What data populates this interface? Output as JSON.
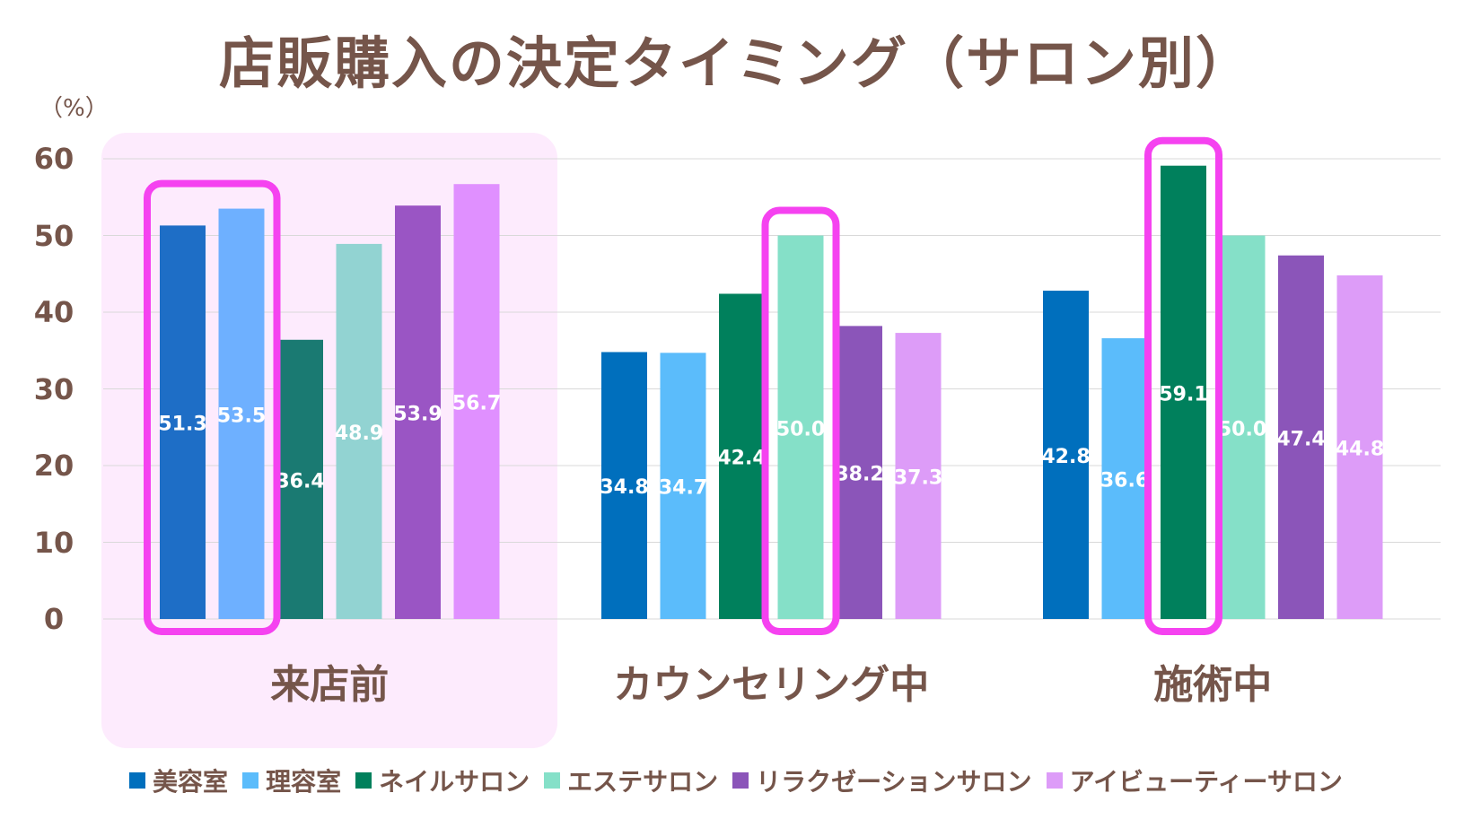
{
  "chart_data": {
    "type": "bar",
    "title": "店販購入の決定タイミング（サロン別）",
    "unit_label": "（%）",
    "ylim": [
      0,
      60
    ],
    "yticks": [
      "0",
      "10",
      "20",
      "30",
      "40",
      "50",
      "60"
    ],
    "grid": true,
    "legend_position": "bottom",
    "categories": [
      "来店前",
      "カウンセリング中",
      "施術中"
    ],
    "highlight_category": "来店前",
    "series": [
      {
        "name": "美容室",
        "values": [
          51.3,
          34.8,
          42.8
        ],
        "colors": [
          "#1e6ec6",
          "#006fbd",
          "#006fbd"
        ],
        "label_color": "#ffffff"
      },
      {
        "name": "理容室",
        "values": [
          53.5,
          34.7,
          36.6
        ],
        "colors": [
          "#6eb0ff",
          "#5bbcfb",
          "#5bbcfb"
        ],
        "label_color": "#ffffff"
      },
      {
        "name": "ネイルサロン",
        "values": [
          36.4,
          42.4,
          59.1
        ],
        "colors": [
          "#1a7a72",
          "#00805c",
          "#00805c"
        ],
        "label_color": "#ffffff"
      },
      {
        "name": "エステサロン",
        "values": [
          48.9,
          50.0,
          50.0
        ],
        "colors": [
          "#92d3d2",
          "#85e0c8",
          "#85e0c8"
        ],
        "label_color": "#ffffff"
      },
      {
        "name": "リラクゼーションサロン",
        "values": [
          53.9,
          38.2,
          47.4
        ],
        "colors": [
          "#9a55c4",
          "#8b55b9",
          "#8b55b9"
        ],
        "label_color": "#ffffff"
      },
      {
        "name": "アイビューティーサロン",
        "values": [
          56.7,
          37.3,
          44.8
        ],
        "colors": [
          "#e090ff",
          "#dd9cf8",
          "#dd9cf8"
        ],
        "label_color": "#ffffff"
      }
    ],
    "emphasized_bars": [
      {
        "category": "来店前",
        "series": [
          "美容室",
          "理容室"
        ]
      },
      {
        "category": "カウンセリング中",
        "series": [
          "エステサロン"
        ]
      },
      {
        "category": "施術中",
        "series": [
          "ネイルサロン"
        ]
      }
    ],
    "colors": {
      "highlight_bg": "#fdebfd",
      "outline": "#f542f0",
      "grid": "#d9d9d9",
      "text": "#75554a"
    }
  }
}
